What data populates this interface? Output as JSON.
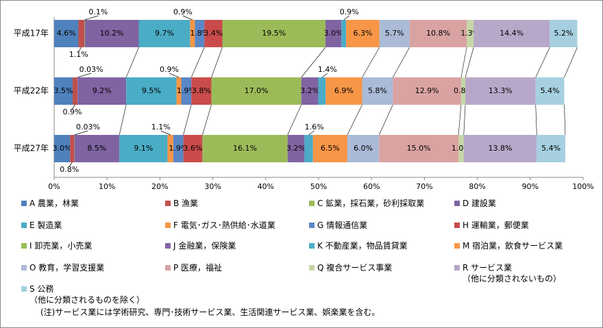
{
  "chart_data": {
    "type": "stacked-bar-horizontal",
    "categories": [
      "平成17年",
      "平成22年",
      "平成27年"
    ],
    "xlim": [
      0,
      100
    ],
    "xticks": [
      {
        "value": 0,
        "label": "0%"
      },
      {
        "value": 10,
        "label": "10%"
      },
      {
        "value": 20,
        "label": "20%"
      },
      {
        "value": 30,
        "label": "30%"
      },
      {
        "value": 40,
        "label": "40%"
      },
      {
        "value": 50,
        "label": "50%"
      },
      {
        "value": 60,
        "label": "60%"
      },
      {
        "value": 70,
        "label": "70%"
      },
      {
        "value": 80,
        "label": "80%"
      },
      {
        "value": 90,
        "label": "90%"
      },
      {
        "value": 100,
        "label": "100%"
      }
    ],
    "series": [
      {
        "name": "A 農業，林業",
        "color": "#4f81bd",
        "values": [
          4.6,
          3.5,
          3.0
        ],
        "value_labels": [
          "4.6%",
          "3.5%",
          "3.0%"
        ]
      },
      {
        "name": "B 漁業",
        "color": "#c0504d",
        "values": [
          1.1,
          0.9,
          0.8
        ],
        "value_labels": [
          "1.1%",
          "0.9%",
          "0.8%"
        ]
      },
      {
        "name": "C 鉱業，採石業，砂利採取業",
        "color": "#9bbb59",
        "values": [
          0.1,
          0.03,
          0.03
        ],
        "value_labels": [
          "0.1%",
          "0.03%",
          "0.03%"
        ]
      },
      {
        "name": "D 建設業",
        "color": "#8064a2",
        "values": [
          10.2,
          9.2,
          8.5
        ],
        "value_labels": [
          "10.2%",
          "9.2%",
          "8.5%"
        ]
      },
      {
        "name": "E 製造業",
        "color": "#4bacc6",
        "values": [
          9.7,
          9.5,
          9.1
        ],
        "value_labels": [
          "9.7%",
          "9.5%",
          "9.1%"
        ]
      },
      {
        "name": "F 電気･ガス･熱供給･水道業",
        "color": "#f79646",
        "values": [
          0.9,
          0.9,
          1.1
        ],
        "value_labels": [
          "0.9%",
          "0.9%",
          "1.1%"
        ]
      },
      {
        "name": "G 情報通信業",
        "color": "#5a87c6",
        "values": [
          1.8,
          1.9,
          1.9
        ],
        "value_labels": [
          "1.8%",
          "1.9%",
          "1.9%"
        ]
      },
      {
        "name": "H 運輸業，郵便業",
        "color": "#c94c4a",
        "values": [
          3.4,
          3.8,
          3.6
        ],
        "value_labels": [
          "3.4%",
          "3.8%",
          "3.6%"
        ]
      },
      {
        "name": "I 卸売業，小売業",
        "color": "#9bbb59",
        "values": [
          19.5,
          17.0,
          16.1
        ],
        "value_labels": [
          "19.5%",
          "17.0%",
          "16.1%"
        ]
      },
      {
        "name": "J 金融業，保険業",
        "color": "#8064a2",
        "values": [
          3.0,
          3.2,
          3.2
        ],
        "value_labels": [
          "3.0%",
          "3.2%",
          "3.2%"
        ]
      },
      {
        "name": "K 不動産業，物品賃貸業",
        "color": "#4bacc6",
        "values": [
          0.9,
          1.4,
          1.6
        ],
        "value_labels": [
          "0.9%",
          "1.4%",
          "1.6%"
        ]
      },
      {
        "name": "M 宿泊業，飲食サービス業",
        "color": "#f79646",
        "values": [
          6.3,
          6.9,
          6.5
        ],
        "value_labels": [
          "6.3%",
          "6.9%",
          "6.5%"
        ]
      },
      {
        "name": "O 教育，学習支援業",
        "color": "#aabad7",
        "values": [
          5.7,
          5.8,
          6.0
        ],
        "value_labels": [
          "5.7%",
          "5.8%",
          "6.0%"
        ]
      },
      {
        "name": "P 医療，福祉",
        "color": "#d9a3a2",
        "values": [
          10.8,
          12.9,
          15.0
        ],
        "value_labels": [
          "10.8%",
          "12.9%",
          "15.0%"
        ]
      },
      {
        "name": "Q 複合サービス事業",
        "color": "#c6d6a6",
        "values": [
          1.3,
          0.8,
          1.0
        ],
        "value_labels": [
          "1.3%",
          "0.8%",
          "1.0%"
        ]
      },
      {
        "name": "R サービス業\n（他に分類されないもの）",
        "color": "#b7a8c9",
        "values": [
          14.4,
          13.3,
          13.8
        ],
        "value_labels": [
          "14.4%",
          "13.3%",
          "13.8%"
        ]
      },
      {
        "name": "S 公務\n（他に分類されるものを除く）",
        "color": "#a6d0e0",
        "values": [
          5.2,
          5.4,
          5.4
        ],
        "value_labels": [
          "5.2%",
          "5.4%",
          "5.4%"
        ]
      }
    ],
    "note": "(注)サービス業には学術研究、専門･技術サービス業、生活関連サービス業、娯楽業を含む。"
  }
}
